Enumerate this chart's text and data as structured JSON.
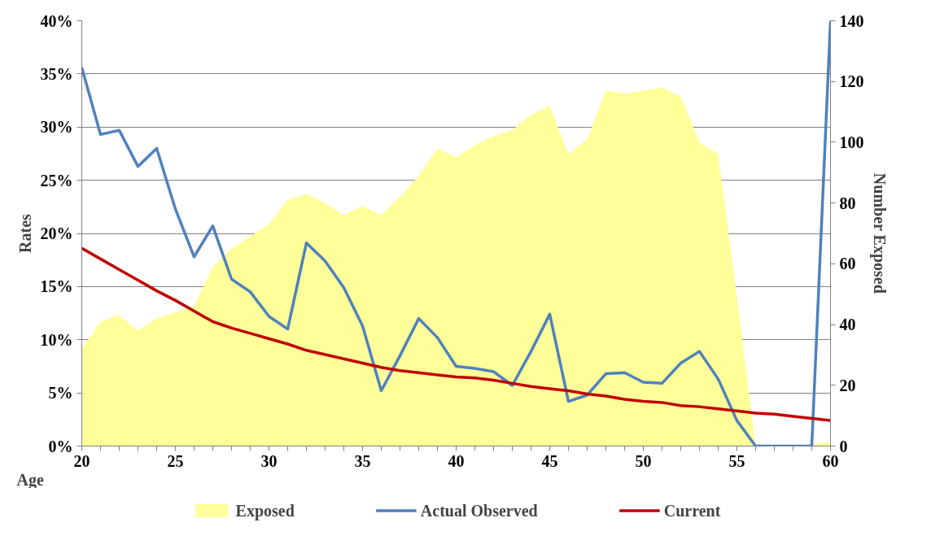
{
  "chart_data": {
    "type": "line",
    "xlabel": "Age",
    "ylabel": "Rates",
    "y2label": "Number Exposed",
    "x": [
      20,
      21,
      22,
      23,
      24,
      25,
      26,
      27,
      28,
      29,
      30,
      31,
      32,
      33,
      34,
      35,
      36,
      37,
      38,
      39,
      40,
      41,
      42,
      43,
      44,
      45,
      46,
      47,
      48,
      49,
      50,
      51,
      52,
      53,
      54,
      55,
      56,
      57,
      58,
      59,
      60
    ],
    "series": [
      {
        "name": "Exposed",
        "type": "area",
        "axis": "y2",
        "color": "#ffff99",
        "values": [
          32,
          41,
          43,
          38,
          42,
          44,
          46,
          59,
          65,
          69,
          73,
          81,
          83,
          80,
          76,
          79,
          76,
          82,
          89,
          98,
          95,
          99,
          102,
          104,
          109,
          112,
          96,
          101,
          117,
          116,
          117,
          118,
          115,
          100,
          96,
          49,
          0,
          0,
          0,
          0.5,
          1.5
        ]
      },
      {
        "name": "Actual Observed",
        "color": "#4f81bd",
        "values": [
          35.6,
          29.3,
          29.7,
          26.3,
          28.0,
          22.3,
          17.8,
          20.7,
          15.7,
          14.5,
          12.2,
          11.0,
          19.1,
          17.4,
          14.9,
          11.3,
          5.2,
          8.5,
          12.0,
          10.2,
          7.5,
          7.3,
          7.0,
          5.7,
          8.9,
          12.4,
          4.2,
          4.8,
          6.8,
          6.9,
          6.0,
          5.9,
          7.8,
          8.9,
          6.3,
          2.4,
          0,
          0,
          0,
          0,
          40
        ]
      },
      {
        "name": "Current",
        "color": "#c00000",
        "values": [
          18.6,
          17.6,
          16.6,
          15.6,
          14.6,
          13.7,
          12.7,
          11.7,
          11.1,
          10.6,
          10.1,
          9.6,
          9.0,
          8.6,
          8.2,
          7.8,
          7.4,
          7.1,
          6.9,
          6.7,
          6.5,
          6.4,
          6.2,
          5.9,
          5.6,
          5.4,
          5.2,
          4.9,
          4.7,
          4.4,
          4.2,
          4.1,
          3.8,
          3.7,
          3.5,
          3.3,
          3.1,
          3.0,
          2.8,
          2.6,
          2.4
        ]
      }
    ],
    "xlim": [
      20,
      60
    ],
    "xticks": [
      20,
      {
        "value": 21,
        "label": null
      },
      {
        "value": 22,
        "label": null
      },
      {
        "value": 23,
        "label": null
      },
      {
        "value": 24,
        "label": null
      },
      25,
      {
        "value": 26,
        "label": null
      },
      {
        "value": 27,
        "label": null
      },
      {
        "value": 28,
        "label": null
      },
      {
        "value": 29,
        "label": null
      },
      30,
      {
        "value": 31,
        "label": null
      },
      {
        "value": 32,
        "label": null
      },
      {
        "value": 33,
        "label": null
      },
      {
        "value": 34,
        "label": null
      },
      35,
      {
        "value": 36,
        "label": null
      },
      {
        "value": 37,
        "label": null
      },
      {
        "value": 38,
        "label": null
      },
      {
        "value": 39,
        "label": null
      },
      40,
      {
        "value": 41,
        "label": null
      },
      {
        "value": 42,
        "label": null
      },
      {
        "value": 43,
        "label": null
      },
      {
        "value": 44,
        "label": null
      },
      45,
      {
        "value": 46,
        "label": null
      },
      {
        "value": 47,
        "label": null
      },
      {
        "value": 48,
        "label": null
      },
      {
        "value": 49,
        "label": null
      },
      50,
      {
        "value": 51,
        "label": null
      },
      {
        "value": 52,
        "label": null
      },
      {
        "value": 53,
        "label": null
      },
      {
        "value": 54,
        "label": null
      },
      55,
      {
        "value": 56,
        "label": null
      },
      {
        "value": 57,
        "label": null
      },
      {
        "value": 58,
        "label": null
      },
      {
        "value": 59,
        "label": null
      },
      60
    ],
    "ylim": [
      0,
      40
    ],
    "yticks": [
      {
        "value": 0,
        "label": "0%"
      },
      {
        "value": 5,
        "label": "5%"
      },
      {
        "value": 10,
        "label": "10%"
      },
      {
        "value": 15,
        "label": "15%"
      },
      {
        "value": 20,
        "label": "20%"
      },
      {
        "value": 25,
        "label": "25%"
      },
      {
        "value": 30,
        "label": "30%"
      },
      {
        "value": 35,
        "label": "35%"
      },
      {
        "value": 40,
        "label": "40%"
      }
    ],
    "y2lim": [
      0,
      140
    ],
    "y2ticks": [
      0,
      20,
      40,
      60,
      80,
      100,
      120,
      140
    ],
    "grid": "y",
    "legend": "bottom",
    "marker": "none",
    "line_style": "solid"
  }
}
